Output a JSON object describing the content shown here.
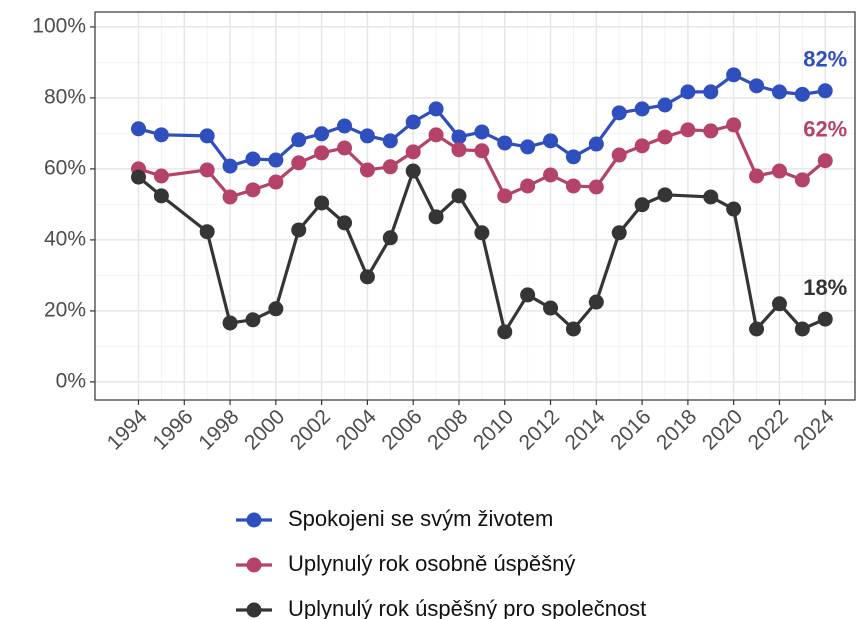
{
  "chart_data": {
    "type": "line",
    "xlim": [
      1992.1,
      2025.3
    ],
    "xticks": [
      1994,
      1996,
      1998,
      2000,
      2002,
      2004,
      2006,
      2008,
      2010,
      2012,
      2014,
      2016,
      2018,
      2020,
      2022,
      2024
    ],
    "ylim": [
      -5.1,
      104.2
    ],
    "yticks": [
      {
        "value": 0,
        "label": "0%"
      },
      {
        "value": 20,
        "label": "20%"
      },
      {
        "value": 40,
        "label": "40%"
      },
      {
        "value": 60,
        "label": "60%"
      },
      {
        "value": 80,
        "label": "80%"
      },
      {
        "value": 100,
        "label": "100%"
      }
    ],
    "grid": true,
    "legend": "bottom",
    "series": [
      {
        "name": "Spokojeni se svým životem",
        "color": "#2f4fbf",
        "x": [
          1994,
          1995,
          1997,
          1998,
          1999,
          2000,
          2001,
          2002,
          2003,
          2004,
          2005,
          2006,
          2007,
          2008,
          2009,
          2010,
          2011,
          2012,
          2013,
          2014,
          2015,
          2016,
          2017,
          2018,
          2019,
          2020,
          2021,
          2022,
          2023,
          2024
        ],
        "values": [
          71.3,
          69.6,
          69.3,
          60.8,
          62.8,
          62.5,
          68.2,
          69.9,
          72.1,
          69.3,
          67.9,
          73.2,
          76.9,
          69.0,
          70.4,
          67.3,
          66.2,
          67.9,
          63.4,
          67.0,
          75.8,
          76.9,
          78.0,
          81.7,
          81.7,
          86.5,
          83.4,
          81.7,
          81.0,
          82.0
        ],
        "end_label": "82%"
      },
      {
        "name": "Uplynulý rok osobně úspěšný",
        "color": "#b5426a",
        "x": [
          1994,
          1995,
          1997,
          1998,
          1999,
          2000,
          2001,
          2002,
          2003,
          2004,
          2005,
          2006,
          2007,
          2008,
          2009,
          2010,
          2011,
          2012,
          2013,
          2014,
          2015,
          2016,
          2017,
          2018,
          2019,
          2020,
          2021,
          2022,
          2023,
          2024
        ],
        "values": [
          60.0,
          58.0,
          59.7,
          52.1,
          54.1,
          56.3,
          61.7,
          64.5,
          65.9,
          59.7,
          60.6,
          64.8,
          69.6,
          65.4,
          65.1,
          52.4,
          55.2,
          58.3,
          55.2,
          54.9,
          63.9,
          66.5,
          69.0,
          71.0,
          70.7,
          72.4,
          58.0,
          59.4,
          56.9,
          62.3
        ],
        "end_label": "62%"
      },
      {
        "name": "Uplynulý rok úspěšný pro společnost",
        "color": "#353535",
        "x": [
          1994,
          1995,
          1997,
          1998,
          1999,
          2000,
          2001,
          2002,
          2003,
          2004,
          2005,
          2006,
          2007,
          2008,
          2009,
          2010,
          2011,
          2012,
          2013,
          2014,
          2015,
          2016,
          2017,
          2019,
          2020,
          2021,
          2022,
          2023,
          2024
        ],
        "values": [
          57.7,
          52.4,
          42.3,
          16.6,
          17.5,
          20.6,
          42.8,
          50.4,
          44.8,
          29.6,
          40.6,
          59.4,
          46.5,
          52.4,
          42.0,
          14.1,
          24.5,
          20.8,
          14.9,
          22.5,
          42.0,
          49.9,
          52.7,
          52.1,
          48.7,
          14.9,
          22.0,
          14.9,
          17.7
        ],
        "end_label": "18%"
      }
    ]
  }
}
